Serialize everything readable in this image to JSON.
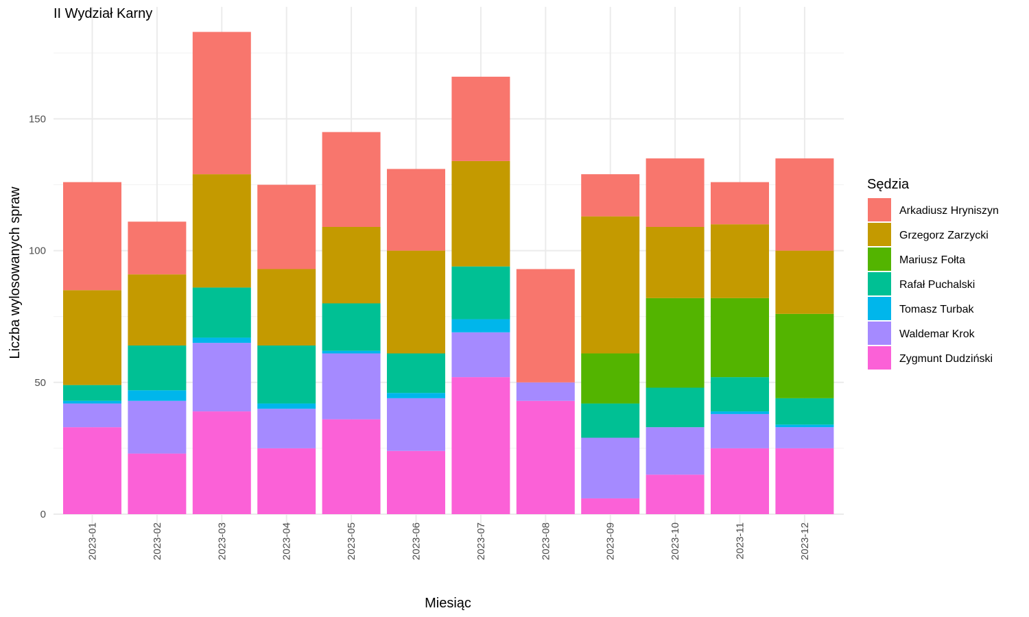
{
  "chart_data": {
    "type": "bar",
    "stacked": true,
    "title": "II Wydział Karny",
    "xlabel": "Miesiąc",
    "ylabel": "Liczba wylosowanych spraw",
    "ylim": [
      0,
      190
    ],
    "yticks": [
      0,
      50,
      100,
      150
    ],
    "grid": true,
    "legend_title": "Sędzia",
    "legend_position": "right",
    "categories": [
      "2023-01",
      "2023-02",
      "2023-03",
      "2023-04",
      "2023-05",
      "2023-06",
      "2023-07",
      "2023-08",
      "2023-09",
      "2023-10",
      "2023-11",
      "2023-12"
    ],
    "series": [
      {
        "name": "Zygmunt Dudziński",
        "color": "#FB61D7",
        "values": [
          33,
          23,
          39,
          25,
          36,
          24,
          52,
          43,
          6,
          15,
          25,
          25
        ]
      },
      {
        "name": "Waldemar Krok",
        "color": "#A58AFF",
        "values": [
          9,
          20,
          26,
          15,
          25,
          20,
          17,
          7,
          23,
          18,
          13,
          8
        ]
      },
      {
        "name": "Tomasz Turbak",
        "color": "#00B6EB",
        "values": [
          1,
          4,
          2,
          2,
          1,
          2,
          5,
          0,
          0,
          0,
          1,
          1
        ]
      },
      {
        "name": "Rafał Puchalski",
        "color": "#00C094",
        "values": [
          6,
          17,
          19,
          22,
          18,
          15,
          20,
          0,
          13,
          15,
          13,
          10
        ]
      },
      {
        "name": "Mariusz Fołta",
        "color": "#53B400",
        "values": [
          0,
          0,
          0,
          0,
          0,
          0,
          0,
          0,
          19,
          34,
          30,
          32
        ]
      },
      {
        "name": "Grzegorz Zarzycki",
        "color": "#C49A00",
        "values": [
          36,
          27,
          43,
          29,
          29,
          39,
          40,
          0,
          52,
          27,
          28,
          24
        ]
      },
      {
        "name": "Arkadiusz Hryniszyn",
        "color": "#F8766D",
        "values": [
          41,
          20,
          54,
          32,
          36,
          31,
          32,
          43,
          16,
          26,
          16,
          35
        ]
      }
    ],
    "legend_order": [
      "Arkadiusz Hryniszyn",
      "Grzegorz Zarzycki",
      "Mariusz Fołta",
      "Rafał Puchalski",
      "Tomasz Turbak",
      "Waldemar Krok",
      "Zygmunt Dudziński"
    ]
  }
}
